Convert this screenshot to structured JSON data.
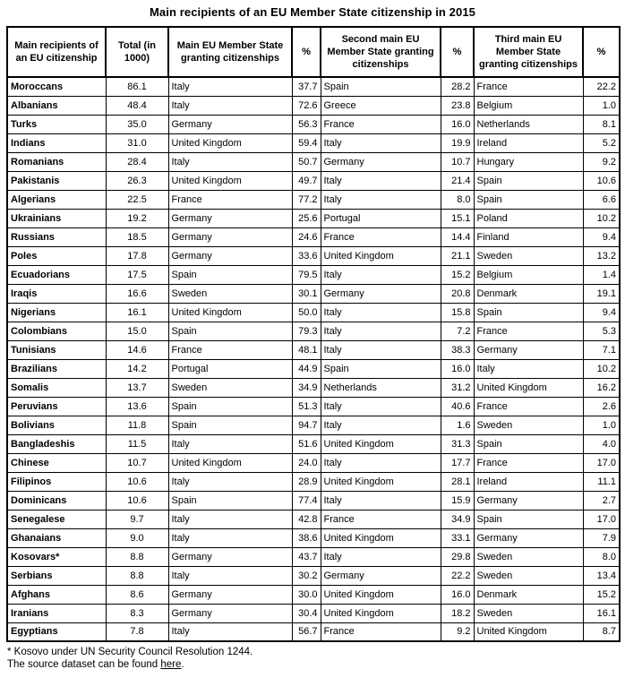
{
  "title": "Main recipients of an EU Member State citizenship in 2015",
  "table": {
    "headers": [
      "Main recipients of an EU citizenship",
      "Total (in 1000)",
      "Main EU Member State granting citizenships",
      "%",
      "Second main EU Member State granting citizenships",
      "%",
      "Third main EU Member State granting citizenships",
      "%"
    ],
    "rows": [
      [
        "Moroccans",
        "86.1",
        "Italy",
        "37.7",
        "Spain",
        "28.2",
        "France",
        "22.2"
      ],
      [
        "Albanians",
        "48.4",
        "Italy",
        "72.6",
        "Greece",
        "23.8",
        "Belgium",
        "1.0"
      ],
      [
        "Turks",
        "35.0",
        "Germany",
        "56.3",
        "France",
        "16.0",
        "Netherlands",
        "8.1"
      ],
      [
        "Indians",
        "31.0",
        "United Kingdom",
        "59.4",
        "Italy",
        "19.9",
        "Ireland",
        "5.2"
      ],
      [
        "Romanians",
        "28.4",
        "Italy",
        "50.7",
        "Germany",
        "10.7",
        "Hungary",
        "9.2"
      ],
      [
        "Pakistanis",
        "26.3",
        "United Kingdom",
        "49.7",
        "Italy",
        "21.4",
        "Spain",
        "10.6"
      ],
      [
        "Algerians",
        "22.5",
        "France",
        "77.2",
        "Italy",
        "8.0",
        "Spain",
        "6.6"
      ],
      [
        "Ukrainians",
        "19.2",
        "Germany",
        "25.6",
        "Portugal",
        "15.1",
        "Poland",
        "10.2"
      ],
      [
        "Russians",
        "18.5",
        "Germany",
        "24.6",
        "France",
        "14.4",
        "Finland",
        "9.4"
      ],
      [
        "Poles",
        "17.8",
        "Germany",
        "33.6",
        "United Kingdom",
        "21.1",
        "Sweden",
        "13.2"
      ],
      [
        "Ecuadorians",
        "17.5",
        "Spain",
        "79.5",
        "Italy",
        "15.2",
        "Belgium",
        "1.4"
      ],
      [
        "Iraqis",
        "16.6",
        "Sweden",
        "30.1",
        "Germany",
        "20.8",
        "Denmark",
        "19.1"
      ],
      [
        "Nigerians",
        "16.1",
        "United Kingdom",
        "50.0",
        "Italy",
        "15.8",
        "Spain",
        "9.4"
      ],
      [
        "Colombians",
        "15.0",
        "Spain",
        "79.3",
        "Italy",
        "7.2",
        "France",
        "5.3"
      ],
      [
        "Tunisians",
        "14.6",
        "France",
        "48.1",
        "Italy",
        "38.3",
        "Germany",
        "7.1"
      ],
      [
        "Brazilians",
        "14.2",
        "Portugal",
        "44.9",
        "Spain",
        "16.0",
        "Italy",
        "10.2"
      ],
      [
        "Somalis",
        "13.7",
        "Sweden",
        "34.9",
        "Netherlands",
        "31.2",
        "United Kingdom",
        "16.2"
      ],
      [
        "Peruvians",
        "13.6",
        "Spain",
        "51.3",
        "Italy",
        "40.6",
        "France",
        "2.6"
      ],
      [
        "Bolivians",
        "11.8",
        "Spain",
        "94.7",
        "Italy",
        "1.6",
        "Sweden",
        "1.0"
      ],
      [
        "Bangladeshis",
        "11.5",
        "Italy",
        "51.6",
        "United Kingdom",
        "31.3",
        "Spain",
        "4.0"
      ],
      [
        "Chinese",
        "10.7",
        "United Kingdom",
        "24.0",
        "Italy",
        "17.7",
        "France",
        "17.0"
      ],
      [
        "Filipinos",
        "10.6",
        "Italy",
        "28.9",
        "United Kingdom",
        "28.1",
        "Ireland",
        "11.1"
      ],
      [
        "Dominicans",
        "10.6",
        "Spain",
        "77.4",
        "Italy",
        "15.9",
        "Germany",
        "2.7"
      ],
      [
        "Senegalese",
        "9.7",
        "Italy",
        "42.8",
        "France",
        "34.9",
        "Spain",
        "17.0"
      ],
      [
        "Ghanaians",
        "9.0",
        "Italy",
        "38.6",
        "United Kingdom",
        "33.1",
        "Germany",
        "7.9"
      ],
      [
        "Kosovars*",
        "8.8",
        "Germany",
        "43.7",
        "Italy",
        "29.8",
        "Sweden",
        "8.0"
      ],
      [
        "Serbians",
        "8.8",
        "Italy",
        "30.2",
        "Germany",
        "22.2",
        "Sweden",
        "13.4"
      ],
      [
        "Afghans",
        "8.6",
        "Germany",
        "30.0",
        "United Kingdom",
        "16.0",
        "Denmark",
        "15.2"
      ],
      [
        "Iranians",
        "8.3",
        "Germany",
        "30.4",
        "United Kingdom",
        "18.2",
        "Sweden",
        "16.1"
      ],
      [
        "Egyptians",
        "7.8",
        "Italy",
        "56.7",
        "France",
        "9.2",
        "United Kingdom",
        "8.7"
      ]
    ]
  },
  "footnotes": {
    "kosovo_note": "* Kosovo under UN Security Council Resolution 1244.",
    "source_text_before": "The source dataset can be found ",
    "source_link_label": "here",
    "source_text_after": "."
  }
}
